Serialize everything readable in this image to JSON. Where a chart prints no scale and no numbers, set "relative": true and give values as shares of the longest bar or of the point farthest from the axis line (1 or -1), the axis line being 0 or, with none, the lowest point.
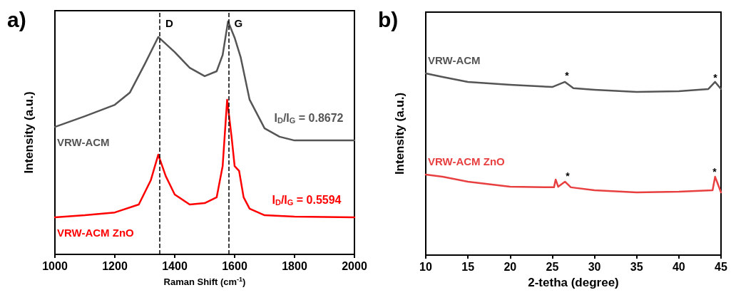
{
  "chart_data": [
    {
      "type": "line",
      "title": "a)",
      "xlabel": "Raman Shift (cm$^{-1}$)",
      "ylabel": "Intensity (a.u.)",
      "relative": true,
      "xlim": [
        1000,
        2000
      ],
      "xticks": [
        1000,
        1200,
        1400,
        1600,
        1800,
        2000
      ],
      "grid": false,
      "legend": false,
      "marker": "none",
      "line_style": "solid",
      "series": [
        {
          "name": "VRW-ACM",
          "color": "#555555",
          "x": [
            1000,
            1100,
            1200,
            1250,
            1300,
            1345,
            1400,
            1450,
            1500,
            1540,
            1560,
            1578,
            1600,
            1620,
            1650,
            1700,
            1750,
            1800,
            1900,
            2000
          ],
          "values": [
            0.547,
            0.593,
            0.642,
            0.694,
            0.817,
            0.933,
            0.868,
            0.801,
            0.765,
            0.786,
            0.856,
            1.0,
            0.93,
            0.847,
            0.664,
            0.541,
            0.505,
            0.489,
            0.489,
            0.489
          ]
        },
        {
          "name": "VRW-ACM ZnO",
          "color": "#ff0000",
          "x": [
            1000,
            1100,
            1200,
            1280,
            1320,
            1345,
            1370,
            1400,
            1450,
            1500,
            1540,
            1560,
            1575,
            1590,
            1600,
            1615,
            1630,
            1650,
            1700,
            1800,
            2000
          ],
          "values": [
            0.159,
            0.168,
            0.18,
            0.214,
            0.318,
            0.428,
            0.336,
            0.257,
            0.214,
            0.22,
            0.245,
            0.379,
            0.664,
            0.502,
            0.379,
            0.358,
            0.245,
            0.196,
            0.168,
            0.162,
            0.159
          ]
        }
      ],
      "ref_lines": [
        {
          "axis": "x",
          "value": 1350,
          "label": "D",
          "color": "#000000",
          "line_style": "dashed"
        },
        {
          "axis": "x",
          "value": 1580,
          "label": "G",
          "color": "#000000",
          "line_style": "dashed"
        }
      ],
      "annotations": [
        "I$_{D}$/I$_{G}$ = 0.8672",
        "I$_{D}$/I$_{G}$ = 0.5594"
      ]
    },
    {
      "type": "line",
      "title": "b)",
      "xlabel": "2-tetha (degree)",
      "ylabel": "Intensity (a.u.)",
      "relative": true,
      "xlim": [
        10,
        45
      ],
      "xticks": [
        10,
        15,
        20,
        25,
        30,
        35,
        40,
        45
      ],
      "grid": false,
      "legend": false,
      "marker": "none",
      "line_style": "solid",
      "series": [
        {
          "name": "VRW-ACM",
          "color": "#555555",
          "x": [
            10,
            12,
            15,
            20,
            25,
            26.5,
            27.5,
            30,
            35,
            40,
            43.5,
            44.3,
            45
          ],
          "values": [
            1.0,
            0.98,
            0.953,
            0.937,
            0.925,
            0.953,
            0.918,
            0.91,
            0.898,
            0.902,
            0.914,
            0.953,
            0.914
          ]
        },
        {
          "name": "VRW-ACM ZnO",
          "color": "#e84040",
          "x": [
            10,
            12,
            15,
            20,
            25.2,
            25.4,
            25.7,
            26.5,
            27.2,
            30,
            35,
            40,
            44,
            44.3,
            45
          ],
          "values": [
            0.443,
            0.431,
            0.404,
            0.376,
            0.373,
            0.416,
            0.376,
            0.404,
            0.373,
            0.357,
            0.345,
            0.349,
            0.357,
            0.431,
            0.345
          ]
        }
      ],
      "annotations": [
        "*",
        "*",
        "*",
        "*"
      ]
    }
  ]
}
